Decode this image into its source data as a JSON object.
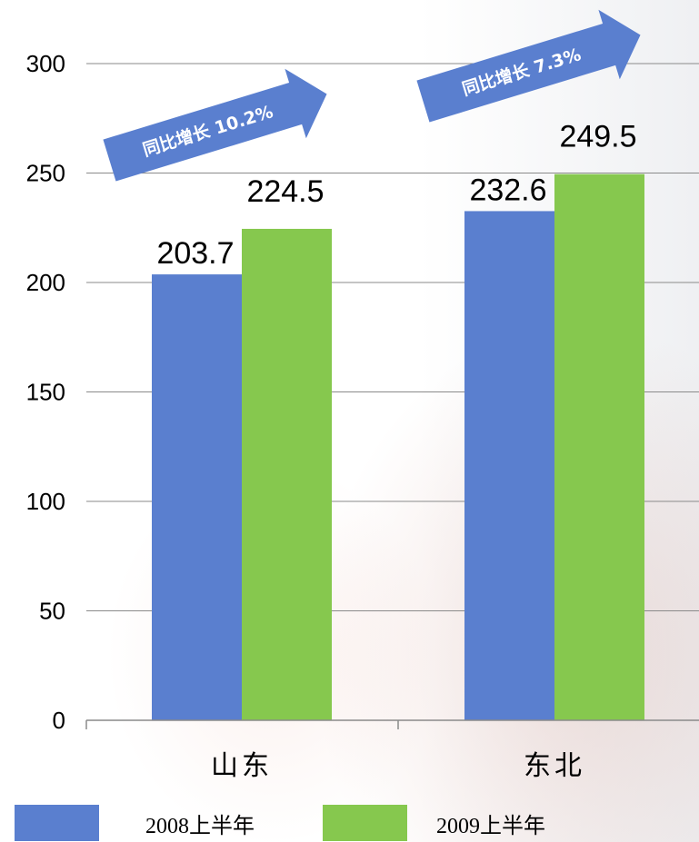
{
  "chart_data": {
    "type": "bar",
    "categories": [
      "山东",
      "东北"
    ],
    "series": [
      {
        "name": "2008上半年",
        "values": [
          203.7,
          232.6
        ],
        "color": "#5a7fcf"
      },
      {
        "name": "2009上半年",
        "values": [
          224.5,
          249.5
        ],
        "color": "#86c84e"
      }
    ],
    "ylim": [
      0,
      300
    ],
    "yticks": [
      0,
      50,
      100,
      150,
      200,
      250,
      300
    ],
    "grid": true,
    "legend": "bottom",
    "data_labels": [
      "203.7",
      "232.6",
      "224.5",
      "249.5"
    ],
    "annotations": [
      {
        "text": "同比增长 10.2%",
        "category": "山东"
      },
      {
        "text": "同比增长 7.3%",
        "category": "东北"
      }
    ],
    "annotation_color": "#5a7fcf"
  }
}
